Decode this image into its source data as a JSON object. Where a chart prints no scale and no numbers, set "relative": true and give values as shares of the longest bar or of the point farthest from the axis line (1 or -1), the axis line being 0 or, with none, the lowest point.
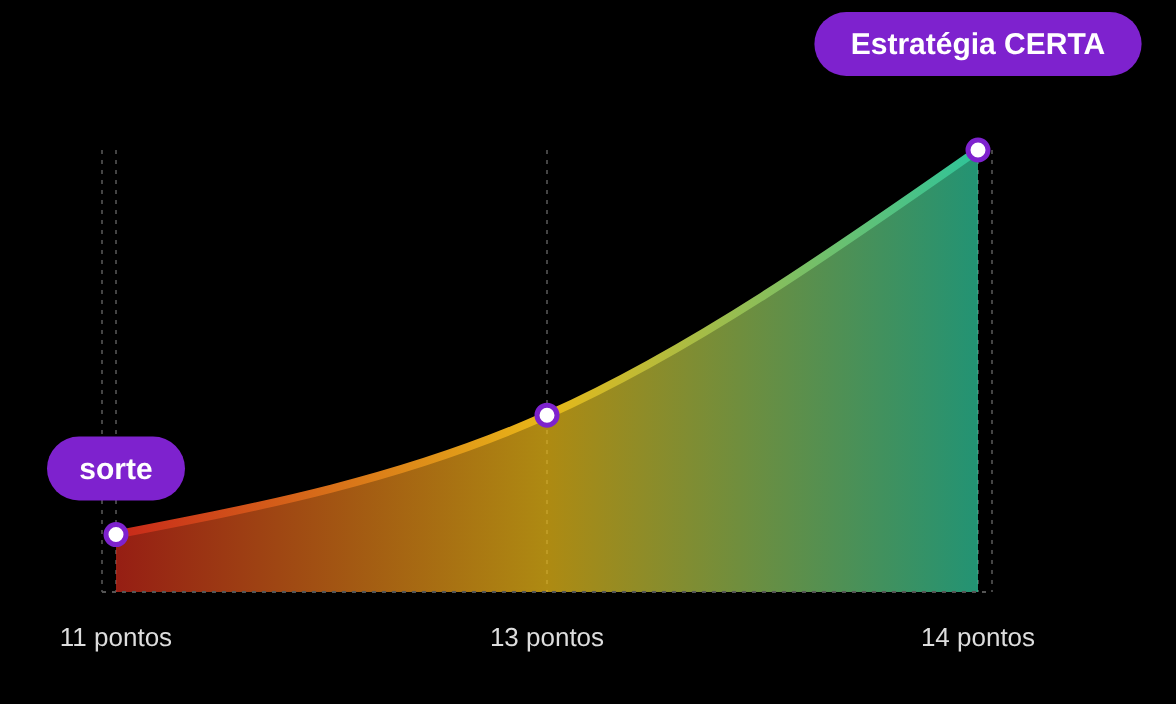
{
  "chart_data": {
    "type": "area",
    "relative": true,
    "categories": [
      "11 pontos",
      "13 pontos",
      "14 pontos"
    ],
    "series": [
      {
        "values": [
          0.13,
          0.4,
          1
        ],
        "colors": [
          "#c8281a",
          "#e8b818",
          "#2ec49a"
        ]
      }
    ],
    "marker": "circle",
    "grid": "x",
    "annotations": [
      "sorte",
      "Estratégia CERTA"
    ]
  }
}
